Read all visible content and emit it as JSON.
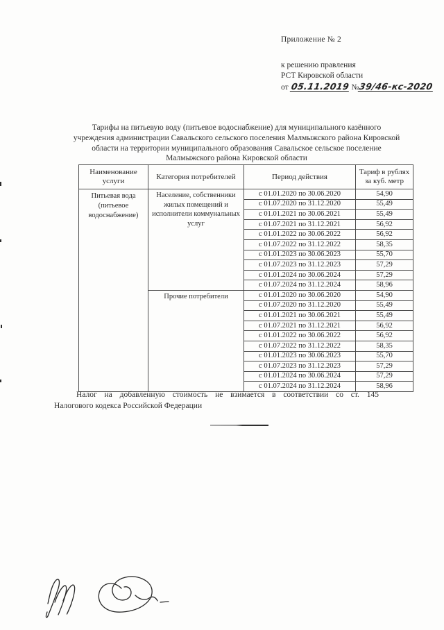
{
  "header": {
    "appendix": "Приложение  № 2",
    "decision_line1": "к решению правления",
    "decision_line2": "РСТ Кировской области",
    "date_label": "от",
    "date_handwritten": "05.11.2019",
    "number_label": "№",
    "number_handwritten": "39/46-кс-2020"
  },
  "title": "Тарифы на питьевую воду (питьевое водоснабжение) для муниципального казённого учреждения администрации Савальского сельского поселения Малмыжского района Кировской области  на территории муниципального образования Савальское сельское поселение Малмыжского района Кировской области",
  "table": {
    "headers": [
      "Наименование услуги",
      "Категория потребителей",
      "Период действия",
      "Тариф в рублях за куб. метр"
    ],
    "service": "Питьевая вода (питьевое водоснабжение)",
    "groups": [
      {
        "category": "Население, собственники жилых помещений и исполнители коммунальных услуг",
        "rows": [
          {
            "period": "с 01.01.2020 по 30.06.2020",
            "tariff": "54,90"
          },
          {
            "period": "с 01.07.2020 по 31.12.2020",
            "tariff": "55,49"
          },
          {
            "period": "с 01.01.2021 по 30.06.2021",
            "tariff": "55,49"
          },
          {
            "period": "с 01.07.2021 по 31.12.2021",
            "tariff": "56,92"
          },
          {
            "period": "с 01.01.2022 по 30.06.2022",
            "tariff": "56,92"
          },
          {
            "period": "с 01.07.2022 по 31.12.2022",
            "tariff": "58,35"
          },
          {
            "period": "с 01.01.2023 по 30.06.2023",
            "tariff": "55,70"
          },
          {
            "period": "с 01.07.2023 по 31.12.2023",
            "tariff": "57,29"
          },
          {
            "period": "с 01.01.2024 по 30.06.2024",
            "tariff": "57,29"
          },
          {
            "period": "с 01.07.2024 по 31.12.2024",
            "tariff": "58,96"
          }
        ]
      },
      {
        "category": "Прочие потребители",
        "rows": [
          {
            "period": "с 01.01.2020 по 30.06.2020",
            "tariff": "54,90"
          },
          {
            "period": "с 01.07.2020 по 31.12.2020",
            "tariff": "55,49"
          },
          {
            "period": "с 01.01.2021 по 30.06.2021",
            "tariff": "55,49"
          },
          {
            "period": "с 01.07.2021 по 31.12.2021",
            "tariff": "56,92"
          },
          {
            "period": "с 01.01.2022 по 30.06.2022",
            "tariff": "56,92"
          },
          {
            "period": "с 01.07.2022 по 31.12.2022",
            "tariff": "58,35"
          },
          {
            "period": "с 01.01.2023 по 30.06.2023",
            "tariff": "55,70"
          },
          {
            "period": "с 01.07.2023 по 31.12.2023",
            "tariff": "57,29"
          },
          {
            "period": "с 01.01.2024 по 30.06.2024",
            "tariff": "57,29"
          },
          {
            "period": "с 01.07.2024 по 31.12.2024",
            "tariff": "58,96"
          }
        ]
      }
    ]
  },
  "footnote": {
    "line1": "Налог на добавленную стоимость  не взимается в соответствии со ст. 145",
    "line2": "Налогового кодекса Российской Федерации"
  }
}
